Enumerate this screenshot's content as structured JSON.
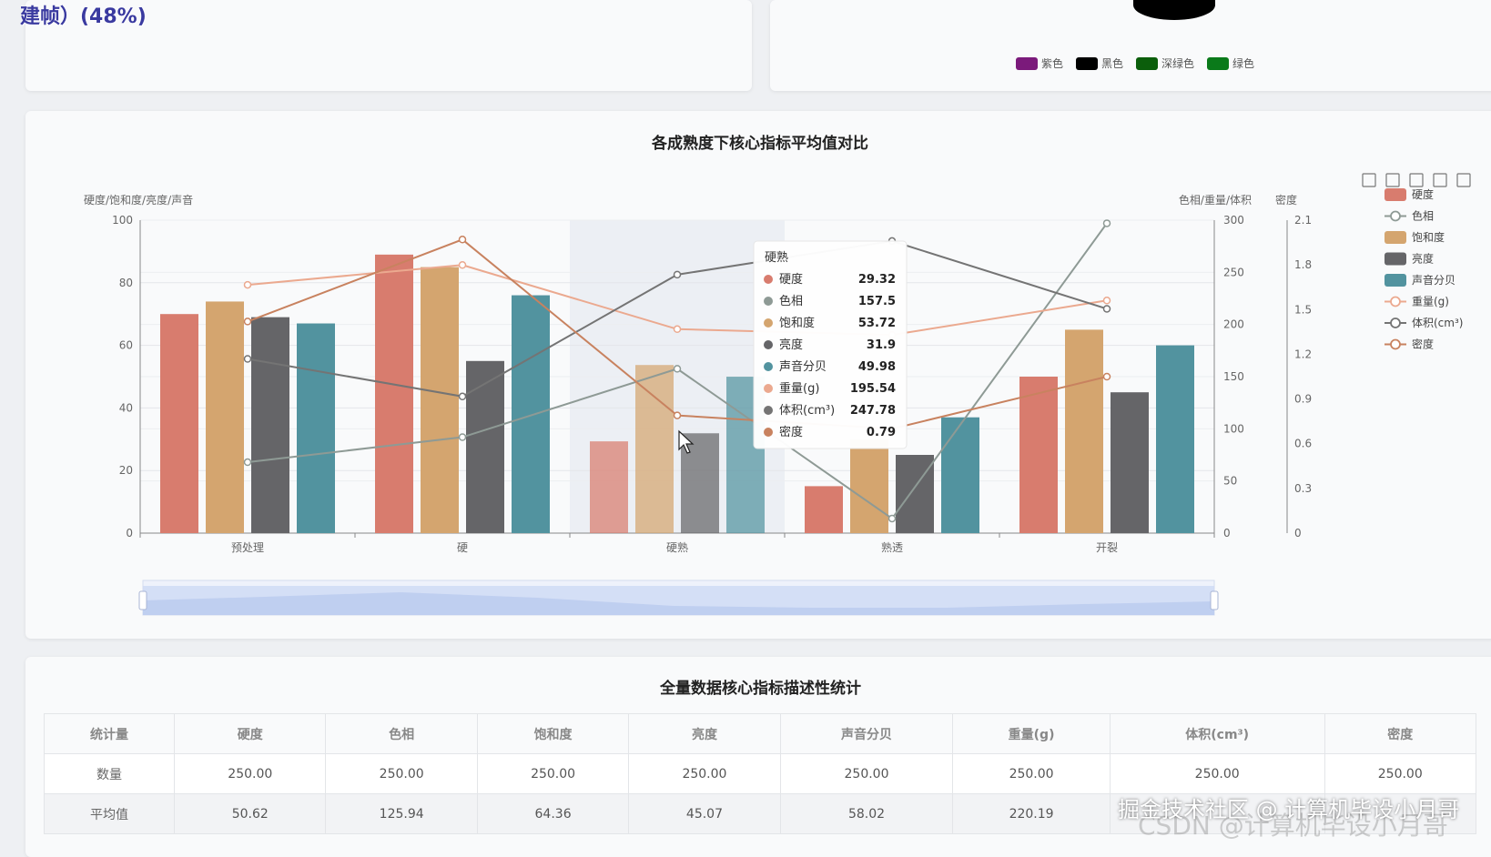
{
  "top_left": {
    "partial_title": "建帧）(48%)"
  },
  "top_right": {
    "legend": [
      {
        "label": "紫色",
        "color": "#7b1a7b"
      },
      {
        "label": "黑色",
        "color": "#000000"
      },
      {
        "label": "深绿色",
        "color": "#0b5e0b"
      },
      {
        "label": "绿色",
        "color": "#0a7a1a"
      }
    ]
  },
  "chart_data": {
    "type": "bar",
    "title": "各成熟度下核心指标平均值对比",
    "categories": [
      "预处理",
      "硬",
      "硬熟",
      "熟透",
      "开裂"
    ],
    "y_axes": [
      {
        "name": "硬度/饱和度/亮度/声音",
        "min": 0,
        "max": 100,
        "ticks": [
          0,
          20,
          40,
          60,
          80,
          100
        ]
      },
      {
        "name": "色相/重量/体积",
        "min": 0,
        "max": 300,
        "ticks": [
          0,
          50,
          100,
          150,
          200,
          250,
          300
        ]
      },
      {
        "name": "密度",
        "min": 0,
        "max": 2.1,
        "ticks": [
          "0",
          "0.3",
          "0.6",
          "0.9",
          "1.2",
          "1.5",
          "1.8",
          "2.1"
        ]
      }
    ],
    "bar_series": [
      {
        "name": "硬度",
        "color": "#d87c6e",
        "axis": 0,
        "values": [
          70,
          89,
          29.32,
          15,
          50
        ]
      },
      {
        "name": "饱和度",
        "color": "#d4a56f",
        "axis": 0,
        "values": [
          74,
          85,
          53.72,
          30,
          65
        ]
      },
      {
        "name": "亮度",
        "color": "#656568",
        "axis": 0,
        "values": [
          69,
          55,
          31.9,
          25,
          45
        ]
      },
      {
        "name": "声音分贝",
        "color": "#52939f",
        "axis": 0,
        "values": [
          67,
          76,
          49.98,
          37,
          60
        ]
      }
    ],
    "line_series": [
      {
        "name": "色相",
        "color": "#8e9a95",
        "axis": 1,
        "values": [
          68,
          92,
          157.5,
          14,
          297
        ]
      },
      {
        "name": "重量(g)",
        "color": "#eba98f",
        "axis": 1,
        "values": [
          238,
          257,
          195.54,
          190,
          223
        ]
      },
      {
        "name": "体积(cm³)",
        "color": "#747474",
        "axis": 1,
        "values": [
          167,
          131,
          247.78,
          280,
          215
        ]
      },
      {
        "name": "密度",
        "color": "#c8825f",
        "axis": 2,
        "values": [
          1.42,
          1.97,
          0.79,
          0.7,
          1.05
        ]
      }
    ],
    "legend_order": [
      "硬度",
      "色相",
      "饱和度",
      "亮度",
      "声音分贝",
      "重量(g)",
      "体积(cm³)",
      "密度"
    ],
    "highlight_category": "硬熟",
    "tooltip": {
      "title": "硬熟",
      "rows": [
        {
          "name": "硬度",
          "value": "29.32",
          "color": "#d87c6e"
        },
        {
          "name": "色相",
          "value": "157.5",
          "color": "#8e9a95"
        },
        {
          "name": "饱和度",
          "value": "53.72",
          "color": "#d4a56f"
        },
        {
          "name": "亮度",
          "value": "31.9",
          "color": "#656568"
        },
        {
          "name": "声音分贝",
          "value": "49.98",
          "color": "#52939f"
        },
        {
          "name": "重量(g)",
          "value": "195.54",
          "color": "#eba98f"
        },
        {
          "name": "体积(cm³)",
          "value": "247.78",
          "color": "#747474"
        },
        {
          "name": "密度",
          "value": "0.79",
          "color": "#c8825f"
        }
      ]
    }
  },
  "table": {
    "title": "全量数据核心指标描述性统计",
    "headers": [
      "统计量",
      "硬度",
      "色相",
      "饱和度",
      "亮度",
      "声音分贝",
      "重量(g)",
      "体积(cm³)",
      "密度"
    ],
    "rows": [
      [
        "数量",
        "250.00",
        "250.00",
        "250.00",
        "250.00",
        "250.00",
        "250.00",
        "250.00",
        "250.00"
      ],
      [
        "平均值",
        "50.62",
        "125.94",
        "64.36",
        "45.07",
        "58.02",
        "220.19",
        "",
        ""
      ]
    ]
  },
  "watermark": {
    "primary": "掘金技术社区 @ 计算机毕设小月哥",
    "secondary": "CSDN @计算机毕设小月哥"
  }
}
